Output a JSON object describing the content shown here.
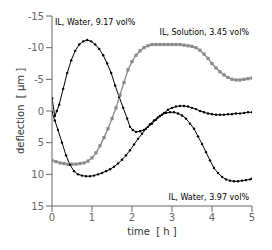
{
  "chart_data": {
    "type": "line",
    "xlabel": "time  [ h ]",
    "ylabel": "deflection  [ μm ]",
    "xlim": [
      0,
      5
    ],
    "ylim": [
      15,
      -15
    ],
    "xticks": [
      0,
      1,
      2,
      3,
      4,
      5
    ],
    "yticks": [
      -15,
      -10,
      -5,
      0,
      5,
      10,
      15
    ],
    "grid": false,
    "series": [
      {
        "color": "#000000",
        "marker": "circle",
        "x": [
          0.0,
          0.07,
          0.12,
          0.18,
          0.28,
          0.38,
          0.48,
          0.58,
          0.68,
          0.78,
          0.88,
          0.98,
          1.08,
          1.18,
          1.28,
          1.38,
          1.48,
          1.58,
          1.68,
          1.78,
          1.88,
          1.95,
          2.02,
          2.1,
          2.2,
          2.3,
          2.4,
          2.5,
          2.6,
          2.7,
          2.8,
          2.9,
          3.0,
          3.1,
          3.2,
          3.3,
          3.4,
          3.5,
          3.6,
          3.7,
          3.8,
          3.9,
          4.0,
          4.1,
          4.2,
          4.3,
          4.4,
          4.5,
          4.6,
          4.7,
          4.8,
          4.9,
          5.0
        ],
        "values": [
          -2.0,
          0.8,
          0.0,
          -1.0,
          -3.5,
          -6.0,
          -8.0,
          -9.5,
          -10.5,
          -11.0,
          -11.2,
          -11.0,
          -10.5,
          -9.8,
          -8.8,
          -7.5,
          -6.0,
          -4.0,
          -2.2,
          -0.5,
          1.2,
          2.5,
          3.0,
          3.3,
          3.2,
          3.0,
          2.5,
          2.0,
          1.4,
          0.8,
          0.3,
          -0.2,
          -0.5,
          -0.7,
          -0.8,
          -0.8,
          -0.7,
          -0.5,
          -0.3,
          0.0,
          0.2,
          0.4,
          0.5,
          0.6,
          0.6,
          0.6,
          0.5,
          0.5,
          0.4,
          0.4,
          0.3,
          0.2,
          0.2
        ]
      },
      {
        "color": "#888888",
        "marker": "square",
        "x": [
          0.0,
          0.1,
          0.2,
          0.3,
          0.4,
          0.5,
          0.6,
          0.7,
          0.8,
          0.9,
          1.0,
          1.1,
          1.2,
          1.3,
          1.4,
          1.5,
          1.6,
          1.7,
          1.8,
          1.9,
          2.0,
          2.1,
          2.2,
          2.3,
          2.4,
          2.5,
          2.6,
          2.7,
          2.8,
          2.9,
          3.0,
          3.1,
          3.2,
          3.3,
          3.4,
          3.5,
          3.6,
          3.7,
          3.8,
          3.9,
          4.0,
          4.1,
          4.2,
          4.3,
          4.4,
          4.5,
          4.6,
          4.7,
          4.8,
          4.9,
          5.0
        ],
        "values": [
          7.8,
          8.0,
          8.2,
          8.3,
          8.4,
          8.4,
          8.4,
          8.3,
          8.2,
          7.9,
          7.4,
          6.6,
          5.5,
          4.2,
          2.8,
          1.2,
          -0.5,
          -2.5,
          -4.5,
          -6.5,
          -7.8,
          -8.8,
          -9.5,
          -10.0,
          -10.3,
          -10.5,
          -10.5,
          -10.5,
          -10.5,
          -10.5,
          -10.5,
          -10.5,
          -10.5,
          -10.4,
          -10.3,
          -10.2,
          -10.0,
          -9.6,
          -9.0,
          -8.3,
          -7.5,
          -6.8,
          -6.2,
          -5.7,
          -5.3,
          -5.0,
          -4.9,
          -4.9,
          -5.0,
          -5.1,
          -5.2
        ]
      },
      {
        "color": "#000000",
        "marker": "circle",
        "x": [
          0.0,
          0.07,
          0.15,
          0.25,
          0.35,
          0.45,
          0.55,
          0.65,
          0.75,
          0.85,
          0.95,
          1.05,
          1.15,
          1.25,
          1.35,
          1.45,
          1.55,
          1.65,
          1.75,
          1.85,
          1.95,
          2.05,
          2.15,
          2.25,
          2.35,
          2.45,
          2.55,
          2.65,
          2.75,
          2.85,
          2.95,
          3.05,
          3.15,
          3.25,
          3.35,
          3.45,
          3.55,
          3.65,
          3.75,
          3.85,
          3.95,
          4.05,
          4.15,
          4.25,
          4.35,
          4.45,
          4.55,
          4.65,
          4.75,
          4.85,
          4.95,
          5.0
        ],
        "values": [
          0.2,
          1.5,
          3.0,
          5.0,
          7.0,
          8.5,
          9.5,
          10.0,
          10.2,
          10.3,
          10.3,
          10.2,
          10.0,
          9.8,
          9.5,
          9.2,
          8.8,
          8.3,
          7.7,
          7.0,
          6.2,
          5.3,
          4.4,
          3.6,
          2.8,
          2.1,
          1.5,
          1.0,
          0.6,
          0.3,
          0.2,
          0.2,
          0.4,
          0.7,
          1.2,
          2.0,
          2.8,
          4.0,
          5.2,
          6.5,
          7.8,
          9.0,
          9.8,
          10.4,
          10.8,
          11.0,
          11.1,
          11.1,
          11.0,
          10.9,
          10.8,
          10.7
        ]
      }
    ],
    "annotations": [
      "IL, Water, 9.17 vol%",
      "IL, Solution, 3.45 vol%",
      "IL, Water, 3.97 vol%"
    ]
  }
}
